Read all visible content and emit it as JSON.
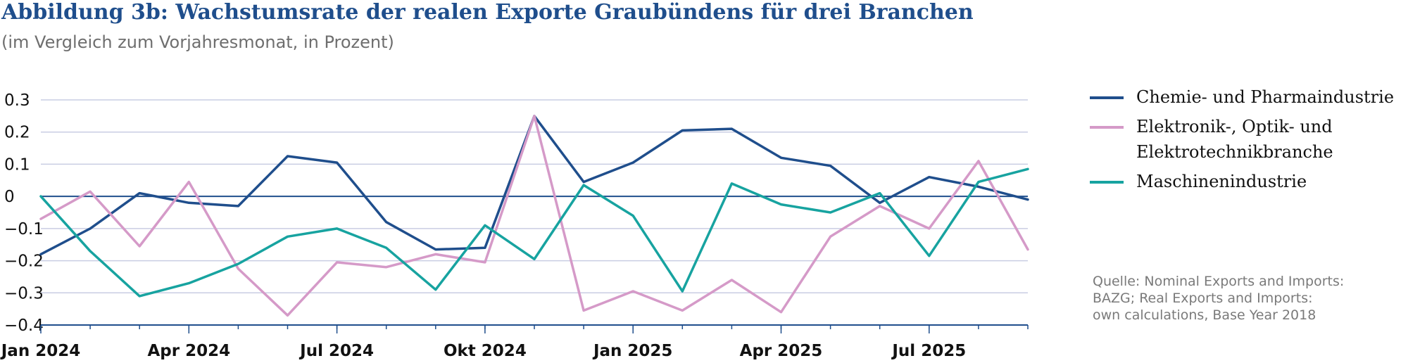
{
  "header": {
    "title": "Abbildung 3b: Wachstumsrate der realen Exporte Graubündens für drei Branchen",
    "subtitle": "(im Vergleich zum Vorjahresmonat, in Prozent)"
  },
  "source_note": "Quelle: Nominal Exports and Imports:\nBAZG; Real Exports and Imports:\nown calculations, Base Year 2018",
  "chart_data": {
    "type": "line",
    "x": [
      "2024-01",
      "2024-02",
      "2024-03",
      "2024-04",
      "2024-05",
      "2024-06",
      "2024-07",
      "2024-08",
      "2024-09",
      "2024-10",
      "2024-11",
      "2024-12",
      "2025-01",
      "2025-02",
      "2025-03",
      "2025-04",
      "2025-05",
      "2025-06",
      "2025-07",
      "2025-08",
      "2025-09"
    ],
    "x_tick_labels": [
      "Jan 2024",
      "Apr 2024",
      "Jul 2024",
      "Okt 2024",
      "Jan 2025",
      "Apr 2025",
      "Jul 2025"
    ],
    "x_tick_values": [
      "2024-01",
      "2024-04",
      "2024-07",
      "2024-10",
      "2025-01",
      "2025-04",
      "2025-07"
    ],
    "y_ticks": [
      0.3,
      0.2,
      0.1,
      0,
      -0.1,
      -0.2,
      -0.3,
      -0.4
    ],
    "y_tick_labels": [
      "0.3",
      "0.2",
      "0.1",
      "0",
      "−0.1",
      "−0.2",
      "−0.3",
      "−0.4"
    ],
    "ylim": [
      -0.4,
      0.3
    ],
    "grid": true,
    "legend_position": "right",
    "series": [
      {
        "name": "Chemie- und Pharmaindustrie",
        "color": "#1f4e8c",
        "values": [
          -0.18,
          -0.1,
          0.01,
          -0.02,
          -0.03,
          0.125,
          0.105,
          -0.08,
          -0.165,
          -0.16,
          0.25,
          0.045,
          0.105,
          0.205,
          0.21,
          0.12,
          0.095,
          -0.02,
          0.06,
          0.03,
          -0.01
        ]
      },
      {
        "name": "Elektronik-, Optik- und Elektrotechnikbranche",
        "color": "#d59ac8",
        "values": [
          -0.07,
          0.015,
          -0.155,
          0.045,
          -0.225,
          -0.37,
          -0.205,
          -0.22,
          -0.18,
          -0.205,
          0.25,
          -0.355,
          -0.295,
          -0.355,
          -0.26,
          -0.36,
          -0.125,
          -0.03,
          -0.1,
          0.11,
          -0.165
        ]
      },
      {
        "name": "Maschinenindustrie",
        "color": "#17a3a0",
        "values": [
          0.0,
          -0.17,
          -0.31,
          -0.27,
          -0.21,
          -0.125,
          -0.1,
          -0.16,
          -0.29,
          -0.09,
          -0.195,
          0.035,
          -0.06,
          -0.295,
          0.04,
          -0.025,
          -0.05,
          0.01,
          -0.185,
          0.045,
          0.085
        ]
      }
    ]
  }
}
